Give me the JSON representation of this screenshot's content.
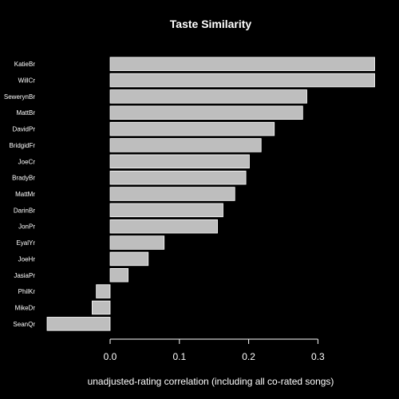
{
  "chart_data": {
    "type": "bar",
    "orientation": "horizontal",
    "title": "Taste Similarity",
    "xlabel": "unadjusted-rating correlation (including all co-rated songs)",
    "ylabel": "",
    "categories": [
      "KatieBr",
      "WillCr",
      "SewerynBr",
      "MattBr",
      "DavidPr",
      "BridgidFr",
      "JoeCr",
      "BradyBr",
      "MattMr",
      "DarinBr",
      "JonPr",
      "EyalYr",
      "JoeHr",
      "JasiaPr",
      "PhilKr",
      "MikeDr",
      "SeanQr"
    ],
    "values": [
      0.382,
      0.382,
      0.284,
      0.278,
      0.237,
      0.218,
      0.201,
      0.196,
      0.18,
      0.163,
      0.155,
      0.078,
      0.055,
      0.026,
      -0.02,
      -0.026,
      -0.091
    ],
    "xticks": [
      "0.0",
      "0.1",
      "0.2",
      "0.3"
    ],
    "xlim": [
      -0.093,
      0.383
    ],
    "bar_color": "#bebebe",
    "background": "#000000",
    "grid": false,
    "legend": "none"
  }
}
